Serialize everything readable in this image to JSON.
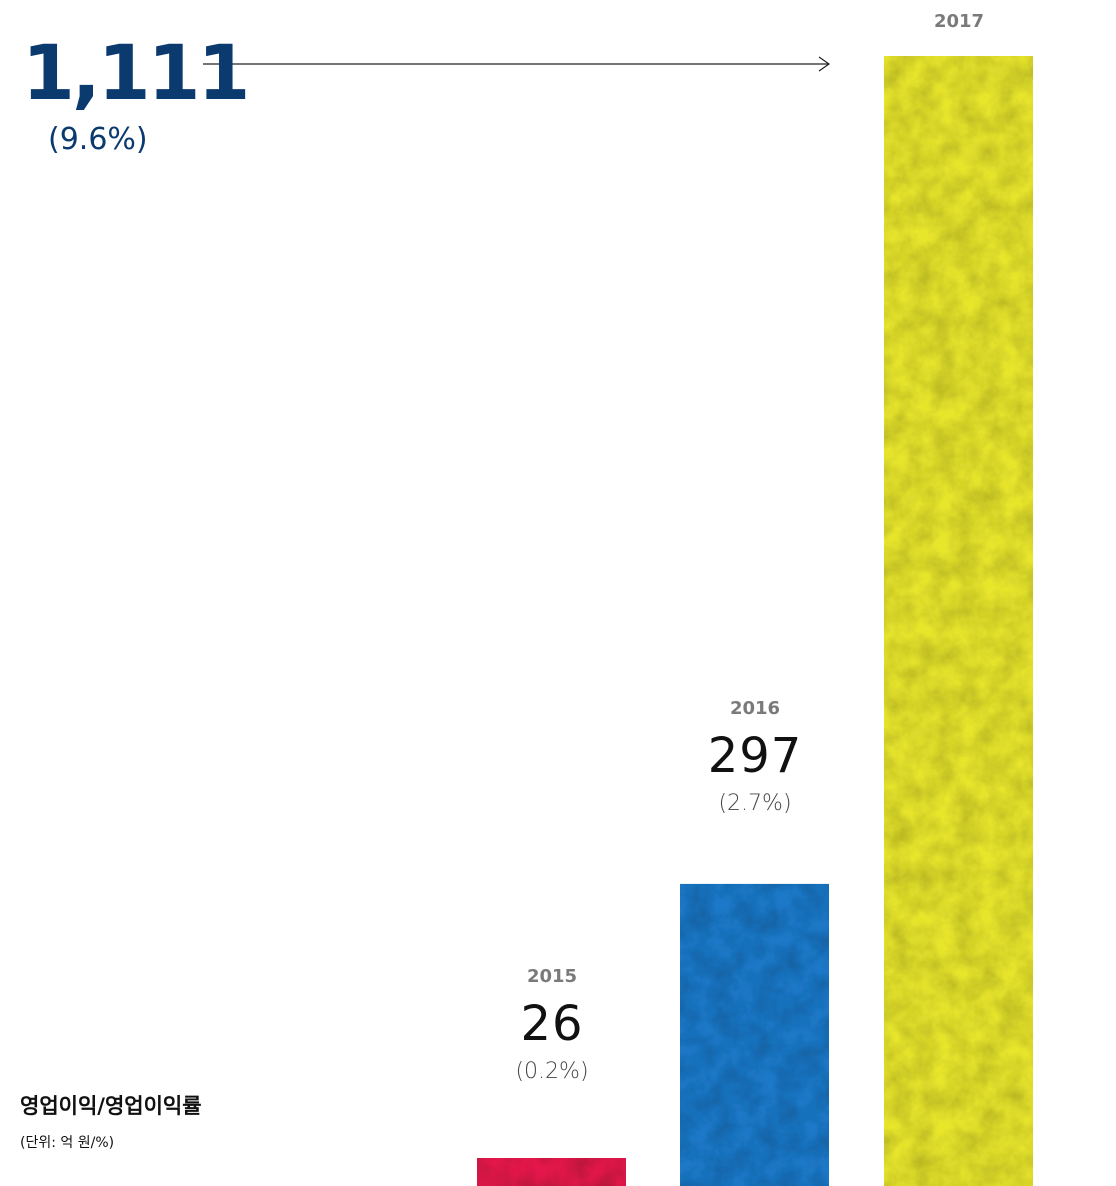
{
  "chart_data": {
    "type": "bar",
    "title": "영업이익/영업이익률",
    "unit": "(단위: 억 원/%)",
    "categories": [
      "2015",
      "2016",
      "2017"
    ],
    "values": [
      26,
      297,
      1111
    ],
    "value_labels": [
      "26",
      "297",
      "1,111"
    ],
    "rate_labels": [
      "(0.2%)",
      "(2.7%)",
      "(9.6%)"
    ],
    "rates": [
      0.2,
      2.7,
      9.6
    ],
    "colors": [
      "#e5194b",
      "#1b79c9",
      "#e8e62c"
    ],
    "highlight_color": "#0b3a6e",
    "ylim": [
      0,
      1111
    ]
  }
}
